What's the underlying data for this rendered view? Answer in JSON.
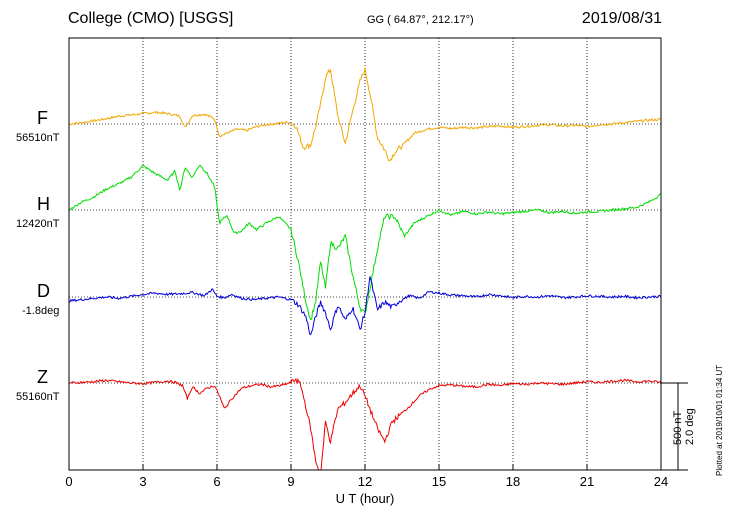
{
  "title": "College (CMO)  [USGS]",
  "coords": "GG ( 64.87°, 212.17°)",
  "date": "2019/08/31",
  "xlabel": "U T (hour)",
  "scale_bar": {
    "line1": "500 nT",
    "line2": "2.0 deg"
  },
  "plotted": "Plotted at 2019/10/01 01:34 UT",
  "chart_data": {
    "type": "line",
    "xlabel": "U T (hour)",
    "xlim": [
      0,
      24
    ],
    "xticks": [
      0,
      3,
      6,
      9,
      12,
      15,
      18,
      21,
      24
    ],
    "grid": true,
    "series": [
      {
        "name": "F",
        "baseline": "56510nT",
        "color": "#f0a800",
        "t": [
          0,
          0.5,
          1,
          1.5,
          2,
          2.5,
          3,
          3.5,
          4,
          4.5,
          4.7,
          5,
          5.5,
          5.9,
          6.1,
          6.4,
          6.8,
          7.2,
          7.6,
          8,
          8.5,
          8.9,
          9.2,
          9.5,
          9.8,
          10.0,
          10.2,
          10.4,
          10.6,
          10.9,
          11.2,
          11.5,
          11.8,
          12.0,
          12.2,
          12.5,
          12.8,
          13.0,
          13.2,
          13.6,
          14.0,
          14.5,
          15,
          15.5,
          16,
          16.5,
          17,
          17.5,
          18,
          18.5,
          19,
          19.5,
          20,
          20.5,
          21,
          21.5,
          22,
          22.5,
          23,
          23.5,
          24
        ],
        "v": [
          0,
          10,
          25,
          40,
          60,
          70,
          80,
          90,
          80,
          60,
          -30,
          65,
          75,
          40,
          -95,
          -70,
          -40,
          -50,
          -20,
          -5,
          5,
          15,
          -15,
          -180,
          -160,
          -20,
          150,
          360,
          420,
          60,
          -150,
          100,
          330,
          420,
          240,
          -100,
          -200,
          -280,
          -220,
          -150,
          -70,
          -40,
          -25,
          -35,
          -25,
          -30,
          -20,
          -15,
          -25,
          -18,
          -10,
          -5,
          -15,
          -10,
          -20,
          -5,
          0,
          10,
          20,
          30,
          35
        ]
      },
      {
        "name": "H",
        "baseline": "12420nT",
        "color": "#00dd00",
        "t": [
          0,
          0.5,
          1,
          1.5,
          2,
          2.5,
          3,
          3.5,
          4,
          4.3,
          4.5,
          4.7,
          5,
          5.3,
          5.6,
          5.9,
          6.1,
          6.4,
          6.7,
          7,
          7.3,
          7.6,
          8,
          8.5,
          9,
          9.3,
          9.6,
          9.8,
          10.0,
          10.2,
          10.4,
          10.6,
          10.9,
          11.2,
          11.5,
          11.8,
          12.0,
          12.2,
          12.5,
          12.8,
          13.2,
          13.6,
          14.0,
          14.5,
          15,
          15.5,
          16,
          16.5,
          17,
          17.5,
          18,
          18.5,
          19,
          19.5,
          20,
          20.5,
          21,
          21.5,
          22,
          22.5,
          23,
          23.5,
          24
        ],
        "v": [
          0,
          60,
          100,
          160,
          200,
          250,
          340,
          280,
          230,
          300,
          150,
          330,
          250,
          350,
          280,
          180,
          -100,
          -40,
          -180,
          -160,
          -100,
          -150,
          -100,
          -50,
          -150,
          -400,
          -700,
          -850,
          -700,
          -400,
          -600,
          -250,
          -300,
          -200,
          -500,
          -750,
          -800,
          -600,
          -300,
          -50,
          -50,
          -200,
          -100,
          -50,
          0,
          -40,
          -10,
          -30,
          -15,
          -30,
          -20,
          -10,
          0,
          -20,
          -10,
          -25,
          -15,
          -10,
          0,
          10,
          20,
          60,
          120
        ]
      },
      {
        "name": "D",
        "baseline": "-1.8deg",
        "color": "#0000dd",
        "t": [
          0,
          0.5,
          1,
          1.5,
          2,
          2.5,
          3,
          3.5,
          4,
          4.5,
          5,
          5.5,
          5.8,
          6,
          6.3,
          6.6,
          7,
          7.5,
          8,
          8.5,
          9,
          9.3,
          9.6,
          9.8,
          10.0,
          10.2,
          10.4,
          10.6,
          10.9,
          11.2,
          11.5,
          11.8,
          12.0,
          12.2,
          12.5,
          12.8,
          13.1,
          13.4,
          13.8,
          14.2,
          14.6,
          15,
          15.5,
          16,
          16.5,
          17,
          17.5,
          18,
          18.5,
          19,
          19.5,
          20,
          20.5,
          21,
          21.5,
          22,
          22.5,
          23,
          23.5,
          24
        ],
        "v": [
          -30,
          -20,
          -10,
          0,
          -10,
          5,
          20,
          30,
          20,
          25,
          35,
          10,
          60,
          5,
          -5,
          20,
          -10,
          -20,
          -10,
          0,
          -20,
          -60,
          -150,
          -300,
          -150,
          -40,
          -120,
          -250,
          -60,
          -180,
          -80,
          -250,
          -120,
          160,
          -100,
          -40,
          -80,
          -30,
          10,
          -10,
          40,
          30,
          15,
          10,
          0,
          20,
          10,
          -5,
          5,
          0,
          10,
          -5,
          0,
          10,
          5,
          0,
          5,
          -5,
          0,
          5
        ]
      },
      {
        "name": "Z",
        "baseline": "55160nT",
        "color": "#ee0000",
        "t": [
          0,
          0.5,
          1,
          1.5,
          2,
          2.5,
          3,
          3.5,
          4,
          4.3,
          4.6,
          4.8,
          5,
          5.3,
          5.6,
          5.9,
          6.1,
          6.3,
          6.6,
          7,
          7.4,
          7.8,
          8.2,
          8.6,
          9,
          9.2,
          9.4,
          9.6,
          9.8,
          10.0,
          10.2,
          10.4,
          10.6,
          10.9,
          11.2,
          11.5,
          11.8,
          12.0,
          12.2,
          12.5,
          12.8,
          13.1,
          13.4,
          13.8,
          14.2,
          14.6,
          15,
          15.5,
          16,
          16.5,
          17,
          17.5,
          18,
          18.5,
          19,
          19.5,
          20,
          20.5,
          21,
          21.5,
          22,
          22.5,
          23,
          23.5,
          24
        ],
        "v": [
          0,
          5,
          10,
          20,
          10,
          0,
          -5,
          5,
          15,
          5,
          -20,
          -120,
          -30,
          -80,
          -40,
          -20,
          -100,
          -200,
          -120,
          -40,
          -20,
          -10,
          -30,
          -20,
          5,
          30,
          -20,
          -180,
          -350,
          -600,
          -700,
          -300,
          -450,
          -200,
          -150,
          -80,
          -20,
          -100,
          -200,
          -350,
          -450,
          -300,
          -250,
          -180,
          -100,
          -50,
          -20,
          -15,
          -25,
          -30,
          -10,
          -20,
          -5,
          -10,
          0,
          -5,
          -10,
          0,
          10,
          5,
          15,
          20,
          10,
          15,
          5
        ]
      }
    ]
  }
}
